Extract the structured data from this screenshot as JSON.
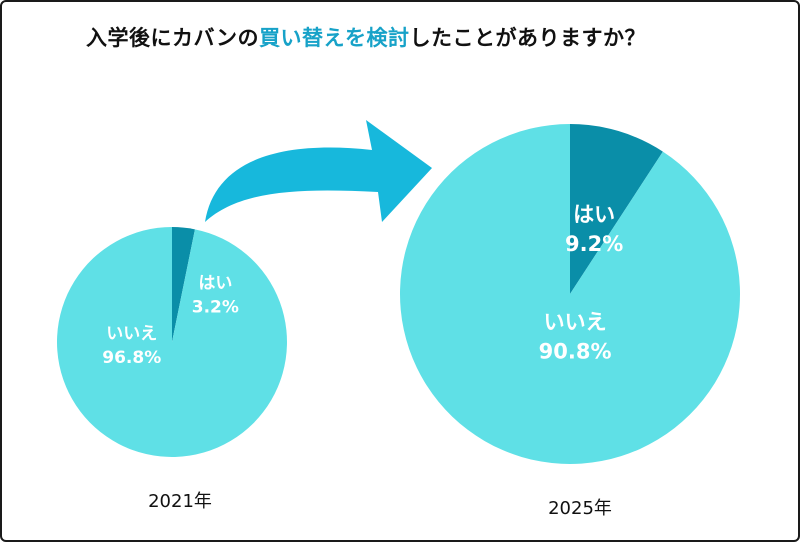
{
  "title": {
    "prefix": "入学後にカバンの",
    "highlight": "買い替えを検討",
    "suffix": "したことがありますか？"
  },
  "colors": {
    "yes": "#0a8ea8",
    "no": "#5fe0e6",
    "arrow": "#17b8dc",
    "highlight": "#17a2c8"
  },
  "chart_data": [
    {
      "type": "pie",
      "title": "2021年",
      "slices": [
        {
          "label": "はい",
          "value": 3.2,
          "display": "3.2%"
        },
        {
          "label": "いいえ",
          "value": 96.8,
          "display": "96.8%"
        }
      ]
    },
    {
      "type": "pie",
      "title": "2025年",
      "slices": [
        {
          "label": "はい",
          "value": 9.2,
          "display": "9.2%"
        },
        {
          "label": "いいえ",
          "value": 90.8,
          "display": "90.8%"
        }
      ]
    }
  ]
}
